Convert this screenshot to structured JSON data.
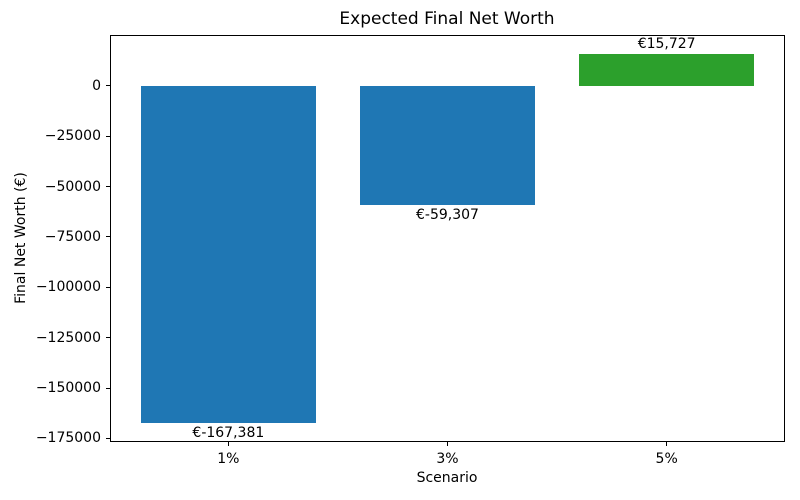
{
  "chart_data": {
    "type": "bar",
    "title": "Expected Final Net Worth",
    "xlabel": "Scenario",
    "ylabel": "Final Net Worth (€)",
    "categories": [
      "1%",
      "3%",
      "5%"
    ],
    "values": [
      -167381,
      -59307,
      15727
    ],
    "bar_labels": [
      "€-167,381",
      "€-59,307",
      "€15,727"
    ],
    "bar_colors": [
      "#1f77b4",
      "#1f77b4",
      "#2ca02c"
    ],
    "negative_color": "#1f77b4",
    "positive_color": "#2ca02c",
    "yticks": [
      0,
      -25000,
      -50000,
      -75000,
      -100000,
      -125000,
      -150000,
      -175000
    ],
    "ytick_labels": [
      "0",
      "−25000",
      "−50000",
      "−75000",
      "−100000",
      "−125000",
      "−150000",
      "−175000"
    ],
    "ylim": [
      -176800,
      25300
    ],
    "xlim": [
      -0.54,
      2.54
    ],
    "bar_width_units": 0.8,
    "grid": false,
    "legend": null,
    "background": "#ffffff"
  }
}
